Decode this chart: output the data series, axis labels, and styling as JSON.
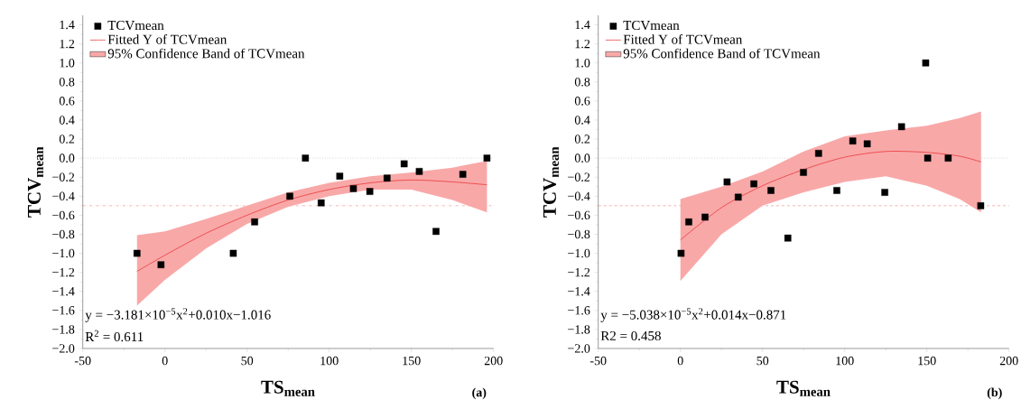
{
  "chart_data": [
    {
      "type": "scatter",
      "xlabel": "**TS$_{mean}$**",
      "ylabel": "**TCV$_{mean}$**",
      "xlim": [
        -50,
        200
      ],
      "ylim": [
        -2.0,
        1.5
      ],
      "xticks": [
        -50,
        0,
        50,
        100,
        150,
        200
      ],
      "yticks": [
        {
          "value": -2.0,
          "label": "−2.0"
        },
        {
          "value": -1.8,
          "label": "−1.8"
        },
        {
          "value": -1.6,
          "label": "−1.6"
        },
        {
          "value": -1.4,
          "label": "−1.4"
        },
        {
          "value": -1.2,
          "label": "−1.2"
        },
        {
          "value": -1.0,
          "label": "−1.0"
        },
        {
          "value": -0.8,
          "label": "−0.8"
        },
        {
          "value": -0.6,
          "label": "−0.6"
        },
        {
          "value": -0.4,
          "label": "−0.4"
        },
        {
          "value": -0.2,
          "label": "−0.2"
        },
        {
          "value": 0.0,
          "label": "0.0"
        },
        {
          "value": 0.2,
          "label": "0.2"
        },
        {
          "value": 0.4,
          "label": "0.4"
        },
        {
          "value": 0.6,
          "label": "0.6"
        },
        {
          "value": 0.8,
          "label": "0.8"
        },
        {
          "value": 1.0,
          "label": "1.0"
        },
        {
          "value": 1.2,
          "label": "1.2"
        },
        {
          "value": 1.4,
          "label": "1.4"
        }
      ],
      "legend": "top left",
      "series": [
        {
          "name": "TCVmean",
          "type": "scatter",
          "marker": "square",
          "color": "#000000",
          "x": [
            -17.0,
            -2.4,
            41.6,
            54.6,
            76.0,
            85.5,
            95.1,
            106.4,
            114.7,
            124.7,
            135.2,
            145.6,
            154.8,
            165.0,
            181.3,
            196.0
          ],
          "values": [
            -1.0,
            -1.12,
            -1.0,
            -0.67,
            -0.4,
            0.0,
            -0.47,
            -0.19,
            -0.32,
            -0.35,
            -0.21,
            -0.06,
            -0.14,
            -0.77,
            -0.17,
            0.0
          ]
        },
        {
          "name": "Fitted Y of TCVmean",
          "type": "line",
          "color": "#e8393a",
          "x": [
            -17,
            0,
            25,
            50,
            75,
            100,
            125,
            150,
            175,
            196
          ],
          "values": [
            -1.19,
            -1.02,
            -0.79,
            -0.6,
            -0.44,
            -0.33,
            -0.26,
            -0.23,
            -0.25,
            -0.28
          ],
          "lower": [
            -1.55,
            -1.28,
            -0.95,
            -0.69,
            -0.51,
            -0.4,
            -0.33,
            -0.33,
            -0.44,
            -0.57
          ],
          "upper": [
            -0.81,
            -0.77,
            -0.64,
            -0.5,
            -0.36,
            -0.26,
            -0.19,
            -0.15,
            -0.1,
            -0.03
          ]
        },
        {
          "name": "95% Confidence Band of TCVmean",
          "type": "area",
          "color": "#f9a8a8"
        }
      ],
      "ref_lines": [
        {
          "axis": "y",
          "value": 0.0,
          "color": "#c0c0c0",
          "line_style": "dotted"
        },
        {
          "axis": "y",
          "value": -0.5,
          "color": "#f4a0a0",
          "line_style": "dashdot"
        }
      ],
      "annotations": [
        "y = −3.181×10$^{−5}$x$^{2}$+0.010x−1.016",
        "R$^{2}$ = 0.611",
        "**(a)**"
      ]
    },
    {
      "type": "scatter",
      "xlabel": "**TS$_{mean}$**",
      "ylabel": "**TCV$_{mean}$**",
      "xlim": [
        -50,
        200
      ],
      "ylim": [
        -2.0,
        1.5
      ],
      "xticks": [
        -50,
        0,
        50,
        100,
        150,
        200
      ],
      "yticks": [
        {
          "value": -2.0,
          "label": "−2.0"
        },
        {
          "value": -1.8,
          "label": "−1.8"
        },
        {
          "value": -1.6,
          "label": "−1.6"
        },
        {
          "value": -1.4,
          "label": "−1.4"
        },
        {
          "value": -1.2,
          "label": "−1.2"
        },
        {
          "value": -1.0,
          "label": "−1.0"
        },
        {
          "value": -0.8,
          "label": "−0.8"
        },
        {
          "value": -0.6,
          "label": "−0.6"
        },
        {
          "value": -0.4,
          "label": "−0.4"
        },
        {
          "value": -0.2,
          "label": "−0.2"
        },
        {
          "value": 0.0,
          "label": "0.0"
        },
        {
          "value": 0.2,
          "label": "0.2"
        },
        {
          "value": 0.4,
          "label": "0.4"
        },
        {
          "value": 0.6,
          "label": "0.6"
        },
        {
          "value": 0.8,
          "label": "0.8"
        },
        {
          "value": 1.0,
          "label": "1.0"
        },
        {
          "value": 1.2,
          "label": "1.2"
        },
        {
          "value": 1.4,
          "label": "1.4"
        }
      ],
      "legend": "top left",
      "series": [
        {
          "name": "TCVmean",
          "type": "scatter",
          "marker": "square",
          "color": "#000000",
          "x": [
            0.4,
            5.1,
            15.0,
            28.4,
            35.2,
            44.7,
            55.1,
            65.4,
            74.9,
            84.1,
            95.2,
            104.9,
            113.7,
            124.4,
            134.6,
            149.3,
            150.5,
            163.0,
            182.8
          ],
          "values": [
            -1.0,
            -0.67,
            -0.62,
            -0.25,
            -0.41,
            -0.27,
            -0.34,
            -0.84,
            -0.15,
            0.05,
            -0.34,
            0.18,
            0.15,
            -0.36,
            0.33,
            1.0,
            0.0,
            0.0,
            -0.5
          ]
        },
        {
          "name": "Fitted Y of TCVmean",
          "type": "line",
          "color": "#e8393a",
          "x": [
            0,
            25,
            50,
            75,
            100,
            125,
            150,
            170,
            183
          ],
          "values": [
            -0.86,
            -0.52,
            -0.29,
            -0.12,
            0.01,
            0.07,
            0.06,
            0.02,
            -0.04
          ],
          "lower": [
            -1.29,
            -0.8,
            -0.5,
            -0.36,
            -0.25,
            -0.19,
            -0.29,
            -0.43,
            -0.57
          ],
          "upper": [
            -0.43,
            -0.3,
            -0.14,
            0.07,
            0.23,
            0.29,
            0.34,
            0.42,
            0.49
          ]
        },
        {
          "name": "95% Confidence Band of TCVmean",
          "type": "area",
          "color": "#f9a8a8"
        }
      ],
      "ref_lines": [
        {
          "axis": "y",
          "value": 0.0,
          "color": "#c0c0c0",
          "line_style": "dotted"
        },
        {
          "axis": "y",
          "value": -0.5,
          "color": "#f4a0a0",
          "line_style": "dashed"
        }
      ],
      "annotations": [
        "y = −5.038×10$^{−5}$x$^{2}$+0.014x−0.871",
        "R2 = 0.458",
        "**(b)**"
      ]
    }
  ]
}
